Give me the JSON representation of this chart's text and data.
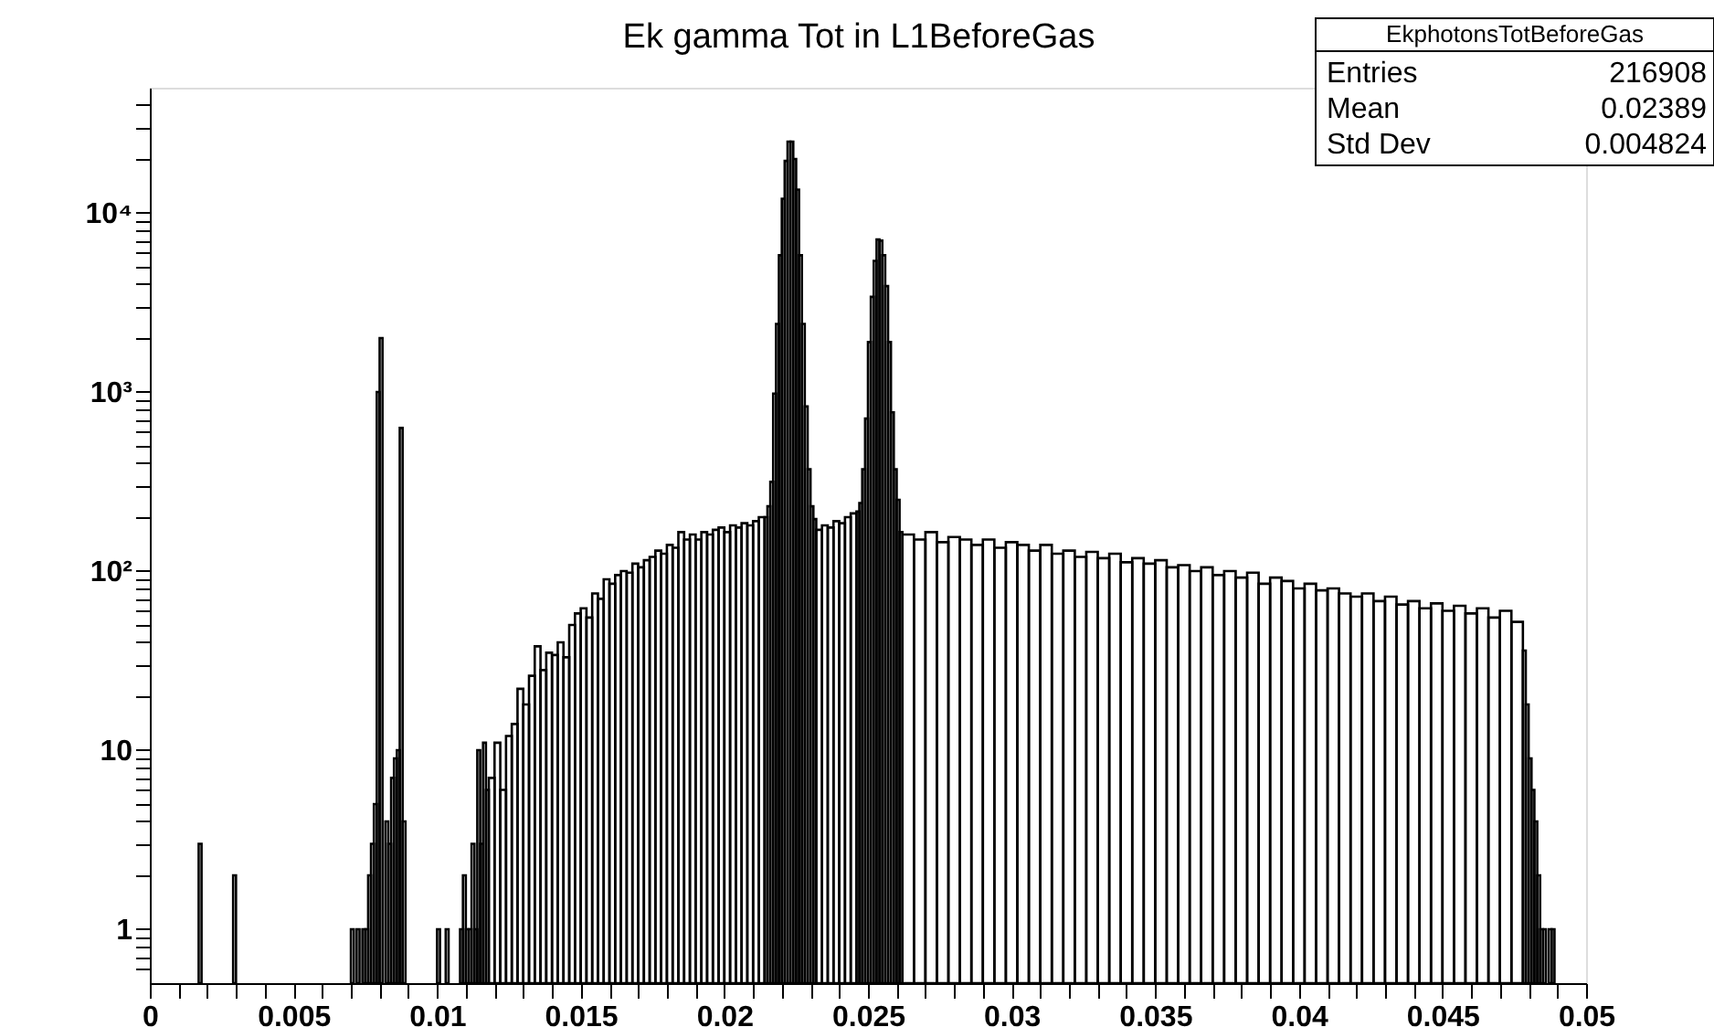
{
  "chart_data": {
    "type": "histogram",
    "title": "Ek gamma Tot in L1BeforeGas",
    "bins": [
      0.0017,
      0.0018,
      0.0029,
      0.003,
      0.007,
      0.0071,
      0.0072,
      0.0073,
      0.0074,
      0.0075,
      0.0076,
      0.0077,
      0.0078,
      0.0079,
      0.008,
      0.0081,
      0.0082,
      0.0083,
      0.0084,
      0.0085,
      0.0086,
      0.0087,
      0.0088,
      0.0089,
      0.01,
      0.0101,
      0.0103,
      0.0104,
      0.0108,
      0.0109,
      0.011,
      0.0111,
      0.0112,
      0.0113,
      0.0114,
      0.0115,
      0.0116,
      0.0117,
      0.0118,
      0.012,
      0.0122,
      0.0124,
      0.0126,
      0.0128,
      0.013,
      0.0132,
      0.0134,
      0.0136,
      0.0138,
      0.014,
      0.0142,
      0.0144,
      0.0146,
      0.0148,
      0.015,
      0.0152,
      0.0154,
      0.0156,
      0.0158,
      0.016,
      0.0162,
      0.0164,
      0.0166,
      0.0168,
      0.017,
      0.0172,
      0.0174,
      0.0176,
      0.0178,
      0.018,
      0.0182,
      0.0184,
      0.0186,
      0.0188,
      0.019,
      0.0192,
      0.0194,
      0.0196,
      0.0198,
      0.02,
      0.0202,
      0.0204,
      0.0206,
      0.0208,
      0.021,
      0.0212,
      0.0214,
      0.0215,
      0.0216,
      0.0217,
      0.0218,
      0.0219,
      0.022,
      0.0221,
      0.0222,
      0.0223,
      0.0224,
      0.0225,
      0.0226,
      0.0227,
      0.0228,
      0.0229,
      0.023,
      0.0231,
      0.0232,
      0.0234,
      0.0236,
      0.0238,
      0.024,
      0.0242,
      0.0244,
      0.0246,
      0.0247,
      0.0248,
      0.0249,
      0.025,
      0.0251,
      0.0252,
      0.0253,
      0.0254,
      0.0255,
      0.0256,
      0.0257,
      0.0258,
      0.0259,
      0.026,
      0.0261,
      0.0262,
      0.0266,
      0.027,
      0.0274,
      0.0278,
      0.0282,
      0.0286,
      0.029,
      0.0294,
      0.0298,
      0.0302,
      0.0306,
      0.031,
      0.0314,
      0.0318,
      0.0322,
      0.0326,
      0.033,
      0.0334,
      0.0338,
      0.0342,
      0.0346,
      0.035,
      0.0354,
      0.0358,
      0.0362,
      0.0366,
      0.037,
      0.0374,
      0.0378,
      0.0382,
      0.0386,
      0.039,
      0.0394,
      0.0398,
      0.0402,
      0.0406,
      0.041,
      0.0414,
      0.0418,
      0.0422,
      0.0426,
      0.043,
      0.0434,
      0.0438,
      0.0442,
      0.0446,
      0.045,
      0.0454,
      0.0458,
      0.0462,
      0.0466,
      0.047,
      0.0474,
      0.0478,
      0.0479,
      0.048,
      0.0481,
      0.0482,
      0.0483,
      0.0484,
      0.0485,
      0.0486,
      0.0487,
      0.0488,
      0.0489
    ],
    "values": [
      3,
      null,
      2,
      null,
      1,
      null,
      1,
      null,
      1,
      1,
      2,
      3,
      5,
      1000,
      2000,
      null,
      4,
      3,
      7,
      9,
      10,
      630,
      4,
      null,
      1,
      null,
      1,
      null,
      1,
      2,
      1,
      1,
      3,
      1,
      10,
      3,
      11,
      6,
      7,
      11,
      6,
      12,
      14,
      22,
      18,
      26,
      38,
      28,
      35,
      34,
      40,
      33,
      50,
      58,
      62,
      55,
      75,
      70,
      90,
      85,
      95,
      100,
      98,
      110,
      105,
      115,
      120,
      130,
      125,
      140,
      135,
      165,
      150,
      160,
      150,
      165,
      160,
      170,
      175,
      165,
      180,
      175,
      185,
      180,
      190,
      200,
      200,
      230,
      315,
      980,
      2400,
      5800,
      12000,
      19500,
      25000,
      25000,
      20000,
      13500,
      5800,
      2400,
      830,
      370,
      230,
      195,
      170,
      180,
      175,
      190,
      185,
      200,
      210,
      215,
      240,
      370,
      710,
      1900,
      3400,
      5400,
      7100,
      7000,
      5800,
      3900,
      1900,
      770,
      370,
      250,
      165,
      160,
      150,
      165,
      145,
      155,
      150,
      140,
      150,
      135,
      145,
      140,
      130,
      140,
      125,
      130,
      120,
      128,
      118,
      125,
      112,
      118,
      110,
      115,
      105,
      108,
      100,
      105,
      95,
      100,
      92,
      98,
      85,
      92,
      88,
      80,
      85,
      78,
      80,
      75,
      72,
      75,
      68,
      72,
      65,
      68,
      62,
      66,
      60,
      64,
      58,
      62,
      55,
      60,
      52,
      36,
      18,
      9,
      6,
      4,
      2,
      1,
      1,
      null,
      1,
      1
    ],
    "color": "#000000",
    "log": true,
    "grid": false,
    "xlim": [
      0,
      0.05
    ],
    "ylim": [
      0.5,
      50000
    ],
    "xticks": [
      0,
      {
        "value": 0.001,
        "label": null
      },
      {
        "value": 0.002,
        "label": null
      },
      {
        "value": 0.003,
        "label": null
      },
      {
        "value": 0.004,
        "label": null
      },
      0.005,
      {
        "value": 0.006,
        "label": null
      },
      {
        "value": 0.007,
        "label": null
      },
      {
        "value": 0.008,
        "label": null
      },
      {
        "value": 0.009,
        "label": null
      },
      0.01,
      {
        "value": 0.011,
        "label": null
      },
      {
        "value": 0.012,
        "label": null
      },
      {
        "value": 0.013,
        "label": null
      },
      {
        "value": 0.014,
        "label": null
      },
      0.015,
      {
        "value": 0.016,
        "label": null
      },
      {
        "value": 0.017,
        "label": null
      },
      {
        "value": 0.018,
        "label": null
      },
      {
        "value": 0.019,
        "label": null
      },
      0.02,
      {
        "value": 0.021,
        "label": null
      },
      {
        "value": 0.022,
        "label": null
      },
      {
        "value": 0.023,
        "label": null
      },
      {
        "value": 0.024,
        "label": null
      },
      0.025,
      {
        "value": 0.026,
        "label": null
      },
      {
        "value": 0.027,
        "label": null
      },
      {
        "value": 0.028,
        "label": null
      },
      {
        "value": 0.029,
        "label": null
      },
      0.03,
      {
        "value": 0.031,
        "label": null
      },
      {
        "value": 0.032,
        "label": null
      },
      {
        "value": 0.033,
        "label": null
      },
      {
        "value": 0.034,
        "label": null
      },
      0.035,
      {
        "value": 0.036,
        "label": null
      },
      {
        "value": 0.037,
        "label": null
      },
      {
        "value": 0.038,
        "label": null
      },
      {
        "value": 0.039,
        "label": null
      },
      0.04,
      {
        "value": 0.041,
        "label": null
      },
      {
        "value": 0.042,
        "label": null
      },
      {
        "value": 0.043,
        "label": null
      },
      {
        "value": 0.044,
        "label": null
      },
      0.045,
      {
        "value": 0.046,
        "label": null
      },
      {
        "value": 0.047,
        "label": null
      },
      {
        "value": 0.048,
        "label": null
      },
      {
        "value": 0.049,
        "label": null
      },
      0.05
    ],
    "yticks": [
      {
        "value": 0.6,
        "label": null
      },
      {
        "value": 0.7,
        "label": null
      },
      {
        "value": 0.8,
        "label": null
      },
      {
        "value": 0.9,
        "label": null
      },
      1,
      {
        "value": 2,
        "label": null
      },
      {
        "value": 3,
        "label": null
      },
      {
        "value": 4,
        "label": null
      },
      {
        "value": 5,
        "label": null
      },
      {
        "value": 6,
        "label": null
      },
      {
        "value": 7,
        "label": null
      },
      {
        "value": 8,
        "label": null
      },
      {
        "value": 9,
        "label": null
      },
      10,
      {
        "value": 20,
        "label": null
      },
      {
        "value": 30,
        "label": null
      },
      {
        "value": 40,
        "label": null
      },
      {
        "value": 50,
        "label": null
      },
      {
        "value": 60,
        "label": null
      },
      {
        "value": 70,
        "label": null
      },
      {
        "value": 80,
        "label": null
      },
      {
        "value": 90,
        "label": null
      },
      {
        "value": 100,
        "label": "10²"
      },
      {
        "value": 200,
        "label": null
      },
      {
        "value": 300,
        "label": null
      },
      {
        "value": 400,
        "label": null
      },
      {
        "value": 500,
        "label": null
      },
      {
        "value": 600,
        "label": null
      },
      {
        "value": 700,
        "label": null
      },
      {
        "value": 800,
        "label": null
      },
      {
        "value": 900,
        "label": null
      },
      {
        "value": 1000,
        "label": "10³"
      },
      {
        "value": 2000,
        "label": null
      },
      {
        "value": 3000,
        "label": null
      },
      {
        "value": 4000,
        "label": null
      },
      {
        "value": 5000,
        "label": null
      },
      {
        "value": 6000,
        "label": null
      },
      {
        "value": 7000,
        "label": null
      },
      {
        "value": 8000,
        "label": null
      },
      {
        "value": 9000,
        "label": null
      },
      {
        "value": 10000,
        "label": "10⁴"
      },
      {
        "value": 20000,
        "label": null
      },
      {
        "value": 30000,
        "label": null
      },
      {
        "value": 40000,
        "label": null
      }
    ],
    "annotations": [
      "EkphotonsTotBeforeGas",
      "Entries 216908",
      "Mean 0.02389",
      "Std Dev 0.004824"
    ]
  }
}
